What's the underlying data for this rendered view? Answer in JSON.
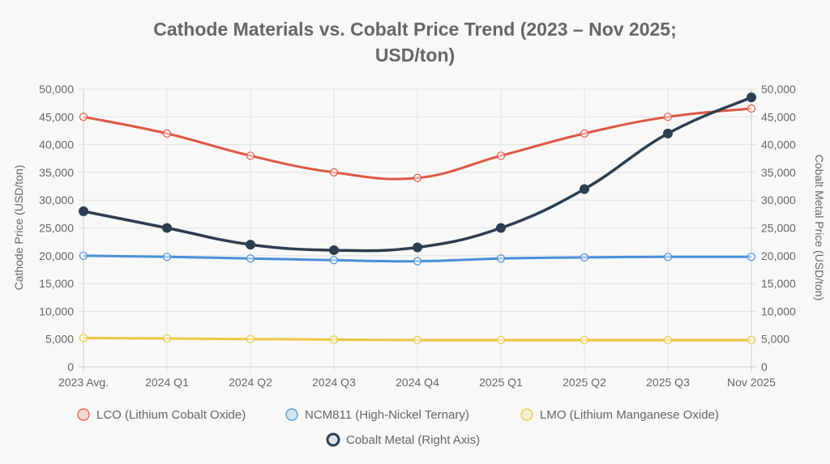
{
  "chart_data": {
    "type": "line",
    "title": [
      "Cathode Materials vs. Cobalt Price Trend (2023 – Nov 2025;",
      "USD/ton)"
    ],
    "categories": [
      "2023 Avg.",
      "2024 Q1",
      "2024 Q2",
      "2024 Q3",
      "2024 Q4",
      "2025 Q1",
      "2025 Q2",
      "2025 Q3",
      "Nov 2025"
    ],
    "ylabel": "Cathode Price (USD/ton)",
    "y2label": "Cobalt Metal Price (USD/ton)",
    "ylim": [
      0,
      50000
    ],
    "y2lim": [
      0,
      50000
    ],
    "yticks": [
      "0",
      "5,000",
      "10,000",
      "15,000",
      "20,000",
      "25,000",
      "30,000",
      "35,000",
      "40,000",
      "45,000",
      "50,000"
    ],
    "grid": true,
    "legend_position": "bottom",
    "series": [
      {
        "name": "LCO (Lithium Cobalt Oxide)",
        "color": "#dd5844",
        "axis": "left",
        "values": [
          45000,
          42000,
          38000,
          35000,
          34000,
          38000,
          42000,
          45000,
          46500
        ]
      },
      {
        "name": "NCM811 (High-Nickel Ternary)",
        "color": "#4a90d9",
        "axis": "left",
        "values": [
          20000,
          19800,
          19500,
          19200,
          19000,
          19500,
          19700,
          19800,
          19800
        ]
      },
      {
        "name": "LMO (Lithium Manganese Oxide)",
        "color": "#ecc73f",
        "axis": "left",
        "values": [
          5200,
          5100,
          5000,
          4900,
          4800,
          4800,
          4800,
          4800,
          4800
        ]
      },
      {
        "name": "Cobalt Metal (Right Axis)",
        "color": "#2c3e50",
        "axis": "right",
        "values": [
          28000,
          25000,
          22000,
          21000,
          21500,
          25000,
          32000,
          42000,
          48500
        ]
      }
    ]
  }
}
